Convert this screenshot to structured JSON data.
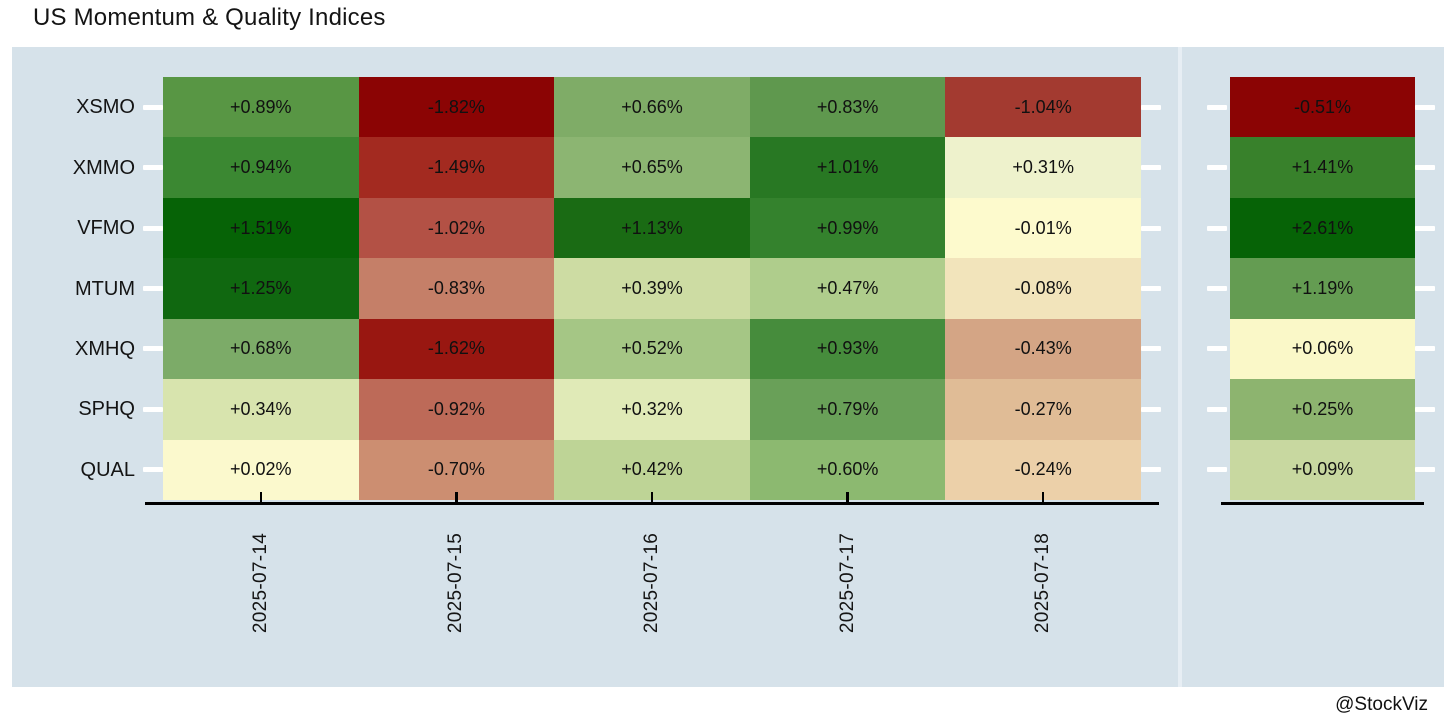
{
  "title": "US Momentum & Quality Indices",
  "watermark": "@StockViz",
  "colors": {
    "panel_bg": "#d6e2ea",
    "axis": "#000000",
    "tick_dash": "#ffffff",
    "text": "#141414",
    "max_green": "#066306",
    "min_red": "#8b0404",
    "neutral_yellow": "#fdfacd"
  },
  "chart_data": {
    "type": "heatmap",
    "title": "US Momentum & Quality Indices",
    "rows": [
      "XSMO",
      "XMMO",
      "VFMO",
      "MTUM",
      "XMHQ",
      "SPHQ",
      "QUAL"
    ],
    "columns": [
      "2025-07-14",
      "2025-07-15",
      "2025-07-16",
      "2025-07-17",
      "2025-07-18"
    ],
    "legend": "none",
    "grid": "off",
    "colormap": "red-yellow-green diverging, dark red = most negative per panel, dark green = most positive per panel",
    "cells": [
      [
        {
          "label": "+0.89%",
          "value": 0.89,
          "color": "#589644"
        },
        {
          "label": "-1.82%",
          "value": -1.82,
          "color": "#8b0404"
        },
        {
          "label": "+0.66%",
          "value": 0.66,
          "color": "#7fac67"
        },
        {
          "label": "+0.83%",
          "value": 0.83,
          "color": "#5f984e"
        },
        {
          "label": "-1.04%",
          "value": -1.04,
          "color": "#a33a30"
        }
      ],
      [
        {
          "label": "+0.94%",
          "value": 0.94,
          "color": "#3b8832"
        },
        {
          "label": "-1.49%",
          "value": -1.49,
          "color": "#a32a20"
        },
        {
          "label": "+0.65%",
          "value": 0.65,
          "color": "#8cb572"
        },
        {
          "label": "+1.01%",
          "value": 1.01,
          "color": "#287823"
        },
        {
          "label": "+0.31%",
          "value": 0.31,
          "color": "#eef2cc"
        }
      ],
      [
        {
          "label": "+1.51%",
          "value": 1.51,
          "color": "#066306"
        },
        {
          "label": "-1.02%",
          "value": -1.02,
          "color": "#b35145"
        },
        {
          "label": "+1.13%",
          "value": 1.13,
          "color": "#1a6b14"
        },
        {
          "label": "+0.99%",
          "value": 0.99,
          "color": "#34822d"
        },
        {
          "label": "-0.01%",
          "value": -0.01,
          "color": "#fdfacd"
        }
      ],
      [
        {
          "label": "+1.25%",
          "value": 1.25,
          "color": "#106810"
        },
        {
          "label": "-0.83%",
          "value": -0.83,
          "color": "#c57f68"
        },
        {
          "label": "+0.39%",
          "value": 0.39,
          "color": "#cddca3"
        },
        {
          "label": "+0.47%",
          "value": 0.47,
          "color": "#afcd8c"
        },
        {
          "label": "-0.08%",
          "value": -0.08,
          "color": "#f2e4bb"
        }
      ],
      [
        {
          "label": "+0.68%",
          "value": 0.68,
          "color": "#7cab68"
        },
        {
          "label": "-1.62%",
          "value": -1.62,
          "color": "#991711"
        },
        {
          "label": "+0.52%",
          "value": 0.52,
          "color": "#a5c685"
        },
        {
          "label": "+0.93%",
          "value": 0.93,
          "color": "#468c3c"
        },
        {
          "label": "-0.43%",
          "value": -0.43,
          "color": "#d4a585"
        }
      ],
      [
        {
          "label": "+0.34%",
          "value": 0.34,
          "color": "#d8e4ae"
        },
        {
          "label": "-0.92%",
          "value": -0.92,
          "color": "#bd6a58"
        },
        {
          "label": "+0.32%",
          "value": 0.32,
          "color": "#e0eab7"
        },
        {
          "label": "+0.79%",
          "value": 0.79,
          "color": "#69a058"
        },
        {
          "label": "-0.27%",
          "value": -0.27,
          "color": "#e0bc96"
        }
      ],
      [
        {
          "label": "+0.02%",
          "value": 0.02,
          "color": "#fbf9cd"
        },
        {
          "label": "-0.70%",
          "value": -0.7,
          "color": "#cc8e71"
        },
        {
          "label": "+0.42%",
          "value": 0.42,
          "color": "#bed496"
        },
        {
          "label": "+0.60%",
          "value": 0.6,
          "color": "#8cb970"
        },
        {
          "label": "-0.24%",
          "value": -0.24,
          "color": "#ecd0a9"
        }
      ]
    ],
    "totals": [
      {
        "label": "-0.51%",
        "value": -0.51,
        "color": "#8b0404"
      },
      {
        "label": "+1.41%",
        "value": 1.41,
        "color": "#38812b"
      },
      {
        "label": "+2.61%",
        "value": 2.61,
        "color": "#066306"
      },
      {
        "label": "+1.19%",
        "value": 1.19,
        "color": "#649c52"
      },
      {
        "label": "+0.06%",
        "value": 0.06,
        "color": "#faf8c8"
      },
      {
        "label": "+0.25%",
        "value": 0.25,
        "color": "#8db46f"
      },
      {
        "label": "+0.09%",
        "value": 0.09,
        "color": "#c8d8a0"
      }
    ]
  }
}
